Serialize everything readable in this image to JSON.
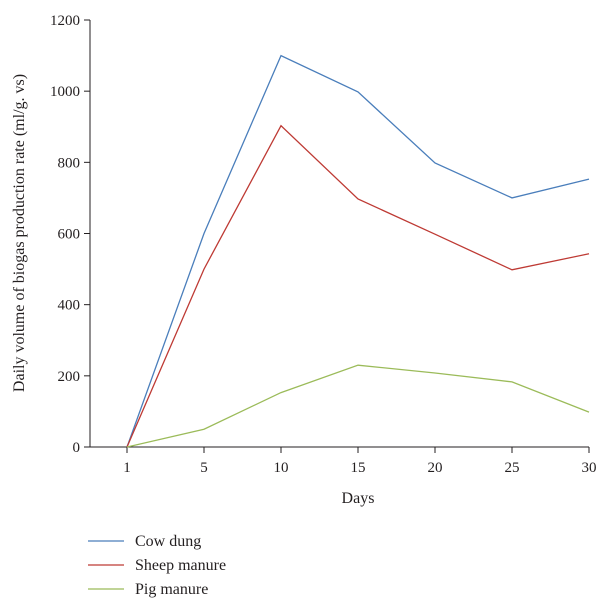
{
  "chart_data": {
    "type": "line",
    "xlabel": "Days",
    "ylabel": "Daily volume of biogas production rate (ml/g. vs)",
    "x": [
      "1",
      "5",
      "10",
      "15",
      "20",
      "25",
      "30"
    ],
    "ylim": [
      0,
      1200
    ],
    "yticks": [
      "0",
      "200",
      "400",
      "600",
      "800",
      "1000",
      "1200"
    ],
    "grid": false,
    "legend_position": "bottom-left",
    "series": [
      {
        "name": "Cow dung",
        "color": "#4a7ebb",
        "values": [
          0,
          600,
          1100,
          998,
          798,
          700,
          753
        ]
      },
      {
        "name": "Sheep manure",
        "color": "#be3a34",
        "values": [
          0,
          500,
          903,
          697,
          598,
          498,
          543
        ]
      },
      {
        "name": "Pig manure",
        "color": "#9bbb59",
        "values": [
          0,
          50,
          153,
          230,
          208,
          183,
          98
        ]
      }
    ]
  }
}
